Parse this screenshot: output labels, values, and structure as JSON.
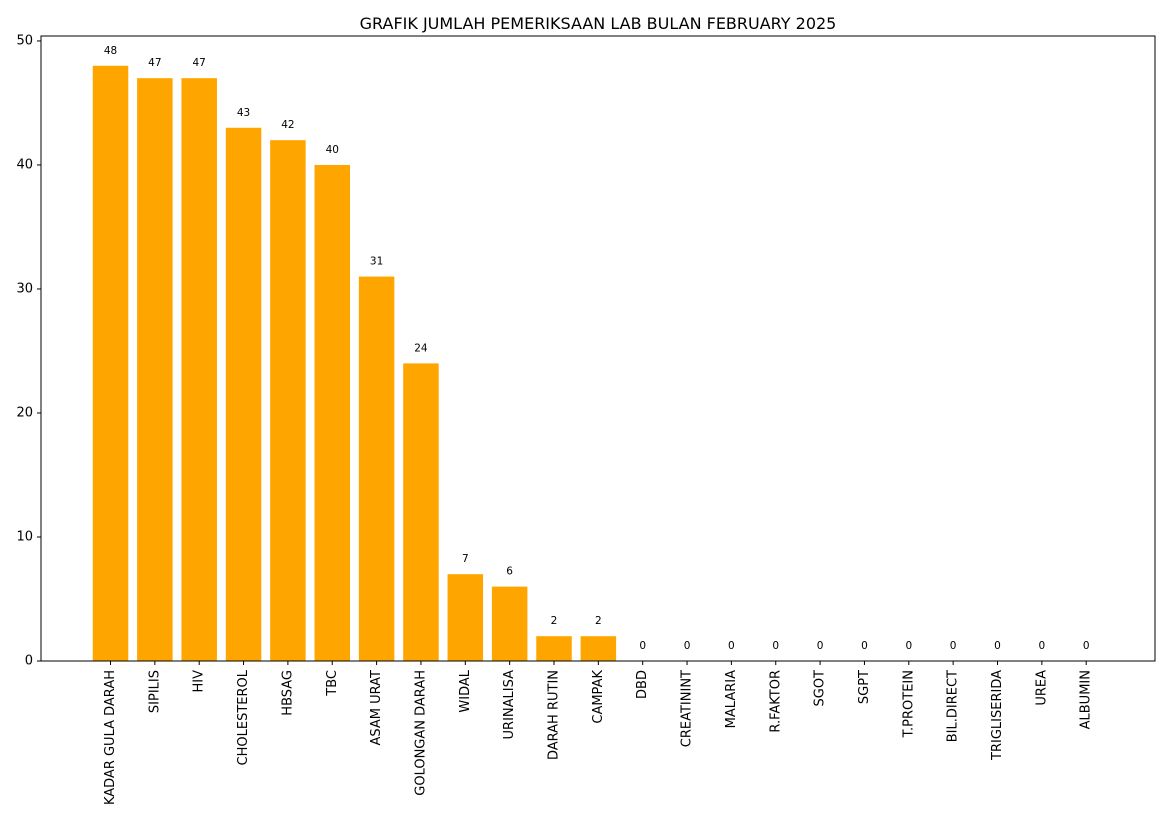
{
  "chart_data": {
    "type": "bar",
    "title": "GRAFIK JUMLAH PEMERIKSAAN LAB BULAN FEBRUARY 2025",
    "xlabel": "",
    "ylabel": "",
    "categories": [
      "KADAR GULA DARAH",
      "SIPILIS",
      "HIV",
      "CHOLESTEROL",
      "HBSAG",
      "TBC",
      "ASAM URAT",
      "GOLONGAN DARAH",
      "WIDAL",
      "URINALISA",
      "DARAH RUTIN",
      "CAMPAK",
      "DBD",
      "CREATININT",
      "MALARIA",
      "R.FAKTOR",
      "SGOT",
      "SGPT",
      "T.PROTEIN",
      "BIL.DIRECT",
      "TRIGLISERIDA",
      "UREA",
      "ALBUMIN"
    ],
    "values": [
      48,
      47,
      47,
      43,
      42,
      40,
      31,
      24,
      7,
      6,
      2,
      2,
      0,
      0,
      0,
      0,
      0,
      0,
      0,
      0,
      0,
      0,
      0
    ],
    "ylim": [
      0,
      50.4
    ],
    "yticks": [
      0,
      10,
      20,
      30,
      40,
      50
    ],
    "bar_color": "#FFA500",
    "grid": false,
    "legend": "none"
  }
}
